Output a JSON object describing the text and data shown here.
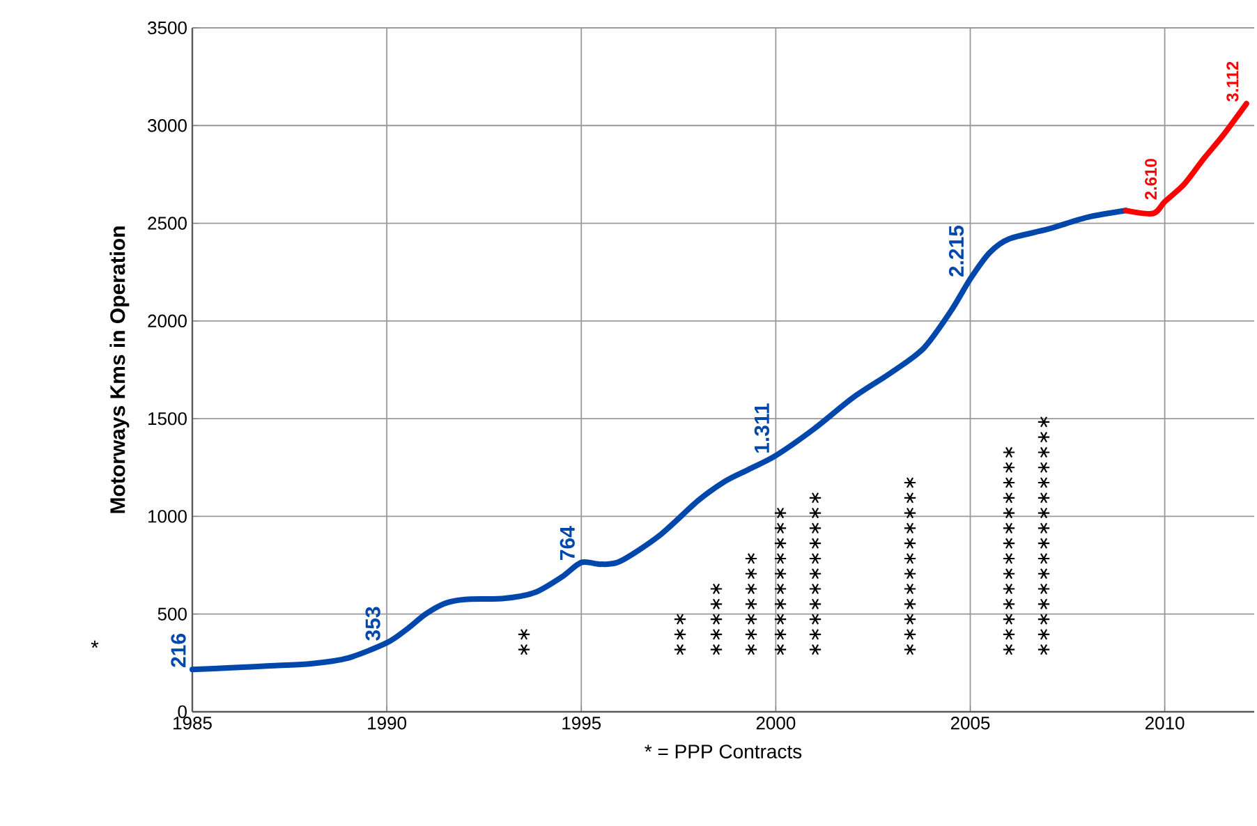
{
  "chart_data": {
    "type": "line",
    "xlabel": "* =  PPP Contracts",
    "ylabel": "Motorways Kms in Operation",
    "xlim": [
      1985,
      2012.3
    ],
    "xticks": [
      1985,
      1990,
      1995,
      2000,
      2005,
      2010
    ],
    "ylim": [
      0,
      3500
    ],
    "yticks": [
      0,
      500,
      1000,
      1500,
      2000,
      2500,
      3000,
      3500
    ],
    "grid": true,
    "marker": "none",
    "line_style": "solid",
    "series": [
      {
        "color": "#0047ab",
        "x": [
          1985,
          1986,
          1987,
          1988,
          1989,
          1990,
          1990.5,
          1991,
          1991.5,
          1992,
          1993,
          1993.8,
          1994.5,
          1995,
          1995.5,
          1996,
          1997,
          1998,
          1998.7,
          1999.3,
          2000,
          2001,
          2002,
          2003,
          2003.8,
          2004.5,
          2005,
          2005.5,
          2006,
          2007,
          2008,
          2009
        ],
        "values": [
          216,
          225,
          235,
          245,
          275,
          353,
          420,
          500,
          555,
          575,
          580,
          610,
          690,
          764,
          755,
          770,
          900,
          1080,
          1180,
          1240,
          1311,
          1450,
          1610,
          1740,
          1860,
          2050,
          2215,
          2350,
          2420,
          2470,
          2530,
          2565
        ],
        "value_labels": [
          "216",
          null,
          null,
          null,
          null,
          "353",
          null,
          null,
          null,
          null,
          null,
          null,
          null,
          "764",
          null,
          null,
          null,
          null,
          null,
          null,
          "1.311",
          null,
          null,
          null,
          null,
          null,
          "2.215",
          null,
          null,
          null,
          null,
          null
        ]
      },
      {
        "color": "#ff0000",
        "x": [
          2009,
          2009.7,
          2010,
          2010.5,
          2011,
          2011.5,
          2012.1
        ],
        "values": [
          2565,
          2550,
          2610,
          2700,
          2830,
          2950,
          3112
        ],
        "value_labels": [
          null,
          null,
          "2.610",
          null,
          null,
          null,
          "3.112"
        ]
      }
    ],
    "annotations": [
      "*",
      "∗∗",
      "∗∗∗",
      "∗∗∗∗∗",
      "∗∗∗∗∗∗∗",
      "∗∗∗∗∗∗∗∗∗∗",
      "∗∗∗∗∗∗∗∗∗∗∗",
      "∗∗∗∗∗∗∗∗∗∗∗∗",
      "∗∗∗∗∗∗∗∗∗∗∗∗∗∗",
      "∗∗∗∗∗∗∗∗∗∗∗∗∗∗∗∗"
    ]
  }
}
